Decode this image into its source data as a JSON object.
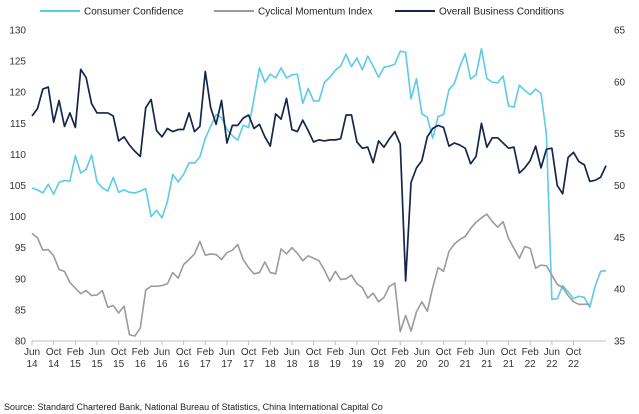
{
  "chart_data": {
    "type": "line",
    "legend_position": "top",
    "grid": false,
    "y_left": {
      "ticks": [
        80,
        85,
        90,
        95,
        100,
        105,
        110,
        115,
        120,
        125,
        130
      ],
      "range": [
        80,
        130
      ]
    },
    "y_right": {
      "ticks": [
        35,
        40,
        45,
        50,
        55,
        60,
        65
      ],
      "range": [
        35,
        65
      ]
    },
    "x_ticks": [
      [
        "Jun",
        "14"
      ],
      [
        "Oct",
        "14"
      ],
      [
        "Feb",
        "15"
      ],
      [
        "Jun",
        "15"
      ],
      [
        "Oct",
        "15"
      ],
      [
        "Feb",
        "16"
      ],
      [
        "Jun",
        "16"
      ],
      [
        "Oct",
        "16"
      ],
      [
        "Feb",
        "17"
      ],
      [
        "Jun",
        "17"
      ],
      [
        "Oct",
        "17"
      ],
      [
        "Feb",
        "18"
      ],
      [
        "Jun",
        "18"
      ],
      [
        "Oct",
        "18"
      ],
      [
        "Feb",
        "19"
      ],
      [
        "Jun",
        "19"
      ],
      [
        "Oct",
        "19"
      ],
      [
        "Feb",
        "20"
      ],
      [
        "Jun",
        "20"
      ],
      [
        "Oct",
        "20"
      ],
      [
        "Feb",
        "21"
      ],
      [
        "Jun",
        "21"
      ],
      [
        "Oct",
        "21"
      ],
      [
        "Feb",
        "22"
      ],
      [
        "Jun",
        "22"
      ],
      [
        "Oct",
        "22"
      ]
    ],
    "series": [
      {
        "name": "Consumer Confidence",
        "axis": "left",
        "color": "#5bcbe8",
        "start": "2014-06",
        "values": [
          104.6,
          104.3,
          103.8,
          105.2,
          103.6,
          105.5,
          105.8,
          105.7,
          109.8,
          107.0,
          107.6,
          109.9,
          105.6,
          104.6,
          104.1,
          106.3,
          103.9,
          104.3,
          103.9,
          103.8,
          104.1,
          104.5,
          100.0,
          101.0,
          99.8,
          102.4,
          106.8,
          105.6,
          106.8,
          108.6,
          108.6,
          109.6,
          112.6,
          114.5,
          116.4,
          115.9,
          114.0,
          113.0,
          112.3,
          114.7,
          114.3,
          119.0,
          123.9,
          121.6,
          122.9,
          122.3,
          123.9,
          122.3,
          122.8,
          122.9,
          118.2,
          120.6,
          118.6,
          118.6,
          121.6,
          122.4,
          123.5,
          124.2,
          126.1,
          124.1,
          125.5,
          123.6,
          125.8,
          124.2,
          122.4,
          124.0,
          124.2,
          124.5,
          126.6,
          126.4,
          118.9,
          122.2,
          116.5,
          116.0,
          112.6,
          116.1,
          116.4,
          120.4,
          121.4,
          124.1,
          126.2,
          122.1,
          122.8,
          127.0,
          122.2,
          121.6,
          121.5,
          122.6,
          117.8,
          117.6,
          121.1,
          120.3,
          119.6,
          120.5,
          119.8,
          113.2,
          86.7,
          86.8,
          88.9,
          87.9,
          86.8,
          87.2,
          87.0,
          85.4,
          88.8,
          91.2,
          91.3
        ]
      },
      {
        "name": "Cyclical Momentum Index",
        "axis": "left",
        "color": "#9b9b9b",
        "start": "2014-06",
        "values": [
          97.3,
          96.6,
          94.6,
          94.7,
          93.7,
          91.5,
          91.2,
          89.4,
          88.5,
          87.6,
          88.1,
          87.3,
          87.4,
          88.1,
          85.4,
          85.7,
          84.5,
          85.6,
          81.0,
          80.8,
          82.1,
          88.2,
          88.8,
          88.8,
          88.9,
          89.2,
          91.0,
          90.1,
          92.3,
          93.1,
          94.0,
          96.0,
          93.8,
          94.0,
          93.9,
          93.1,
          94.2,
          94.6,
          95.5,
          93.1,
          91.8,
          90.8,
          91.0,
          92.7,
          91.0,
          90.8,
          94.8,
          94.0,
          95.0,
          94.1,
          92.9,
          93.7,
          93.3,
          92.9,
          91.4,
          89.6,
          91.2,
          89.9,
          90.0,
          90.6,
          89.2,
          88.6,
          86.9,
          87.7,
          86.3,
          87.0,
          88.8,
          89.3,
          81.5,
          84.1,
          81.6,
          84.7,
          86.3,
          84.8,
          88.6,
          91.8,
          91.2,
          94.4,
          95.6,
          96.3,
          96.8,
          98.1,
          99.1,
          99.8,
          100.4,
          99.2,
          98.3,
          99.2,
          96.5,
          94.9,
          93.3,
          95.2,
          94.9,
          91.7,
          92.2,
          92.1,
          90.6,
          89.1,
          88.6,
          87.3,
          86.3,
          85.9,
          85.9,
          85.9
        ]
      },
      {
        "name": "Overall Business Conditions",
        "axis": "right",
        "color": "#15264a",
        "start": "2014-06",
        "values": [
          56.7,
          57.4,
          59.3,
          59.5,
          56.1,
          58.2,
          55.7,
          57.0,
          55.6,
          61.2,
          60.4,
          57.9,
          57.0,
          57.0,
          57.0,
          56.7,
          54.3,
          54.7,
          53.9,
          53.3,
          52.8,
          57.5,
          58.3,
          55.3,
          54.7,
          55.5,
          55.2,
          55.4,
          55.4,
          57.0,
          55.2,
          55.7,
          61.0,
          57.5,
          55.9,
          58.2,
          54.1,
          55.8,
          55.8,
          56.5,
          56.8,
          55.5,
          55.9,
          54.7,
          53.8,
          56.9,
          56.4,
          58.4,
          55.4,
          55.2,
          56.3,
          55.3,
          54.2,
          54.4,
          54.3,
          54.4,
          54.4,
          54.5,
          56.8,
          56.8,
          54.2,
          53.6,
          53.7,
          52.2,
          54.3,
          53.7,
          54.5,
          55.2,
          54.0,
          40.8,
          50.3,
          51.7,
          52.4,
          54.7,
          55.5,
          55.8,
          55.6,
          53.8,
          54.1,
          53.9,
          53.6,
          52.1,
          52.8,
          56.0,
          53.7,
          54.6,
          54.6,
          54.1,
          53.6,
          53.7,
          51.2,
          51.7,
          52.4,
          53.8,
          51.7,
          53.5,
          53.6,
          50.0,
          49.2,
          52.7,
          53.2,
          52.3,
          52.0,
          50.4,
          50.5,
          50.8,
          51.9
        ]
      }
    ]
  },
  "source": "Source: Standard Chartered Bank, National Bureau of Statistics, China International Capital Co"
}
